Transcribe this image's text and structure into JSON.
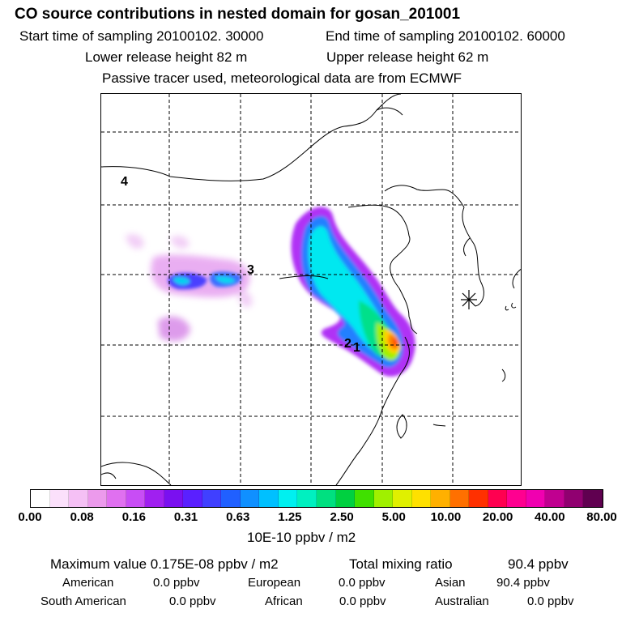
{
  "header": {
    "title": "CO  source contributions in nested domain for gosan_201001",
    "start_time": "Start time of sampling 20100102. 30000",
    "end_time": "End time of sampling 20100102. 60000",
    "lower_height": "Lower release height   82 m",
    "upper_height": "Upper release height   62 m",
    "tracer_note": "Passive tracer used, meteorological data are from ECMWF"
  },
  "chart_data": {
    "type": "heatmap",
    "title": "CO  source contributions in nested domain for gosan_201001",
    "region_labels": [
      "4",
      "3",
      "2",
      "1"
    ],
    "receptor": "gosan",
    "colorbar": {
      "unit": "10E-10 ppbv / m2",
      "ticks": [
        "0.00",
        "0.08",
        "0.16",
        "0.31",
        "0.63",
        "1.25",
        "2.50",
        "5.00",
        "10.00",
        "20.00",
        "40.00",
        "80.00"
      ],
      "colors": [
        "#ffffff",
        "#fbe0fb",
        "#f5c0f5",
        "#ec9aec",
        "#e070f0",
        "#c84df5",
        "#a020f0",
        "#7a10f0",
        "#5a20ff",
        "#4040ff",
        "#2060ff",
        "#1090ff",
        "#00c0ff",
        "#00f0f0",
        "#00f0c0",
        "#00e080",
        "#00d040",
        "#40e000",
        "#a0f000",
        "#e0f000",
        "#ffe000",
        "#ffb000",
        "#ff7000",
        "#ff3000",
        "#ff0050",
        "#ff0090",
        "#f000b0",
        "#c00090",
        "#900070",
        "#600050"
      ]
    }
  },
  "stats": {
    "max_label": "Maximum value  0.175E-08 ppbv / m2",
    "total_label": "Total mixing ratio",
    "total_value": "90.4 ppbv",
    "american_label": "American",
    "american_value": "0.0 ppbv",
    "european_label": "European",
    "european_value": "0.0 ppbv",
    "asian_label": "Asian",
    "asian_value": "90.4 ppbv",
    "south_american_label": "South American",
    "south_american_value": "0.0 ppbv",
    "african_label": "African",
    "african_value": "0.0 ppbv",
    "australian_label": "Australian",
    "australian_value": "0.0 ppbv"
  }
}
